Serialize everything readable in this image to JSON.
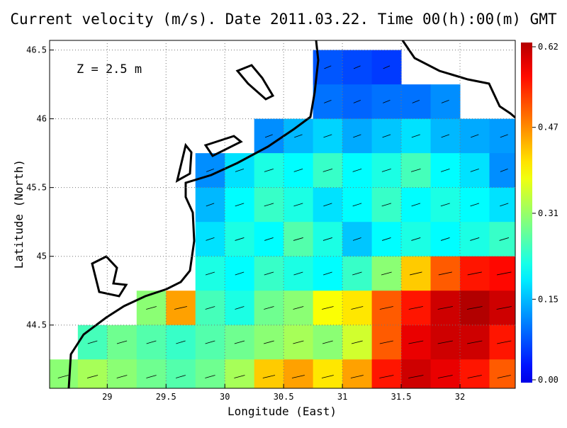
{
  "chart_data": {
    "type": "heatmap",
    "title": "Current velocity (m/s). Date 2011.03.22. Time 00(h):00(m) GMT",
    "x_label": "Longitude (East)",
    "y_label": "Latitude (North)",
    "annotation": "Z = 2.5 m",
    "xlim": [
      28.51,
      32.47
    ],
    "ylim": [
      44.04,
      46.57
    ],
    "xticks": [
      29,
      29.5,
      30,
      30.5,
      31,
      31.5,
      32
    ],
    "yticks": [
      44.5,
      45,
      45.5,
      46,
      46.5
    ],
    "x": [
      28.625,
      28.875,
      29.125,
      29.375,
      29.625,
      29.875,
      30.125,
      30.375,
      30.625,
      30.875,
      31.125,
      31.375,
      31.625,
      31.875,
      32.125,
      32.375
    ],
    "y": [
      46.375,
      46.125,
      45.875,
      45.625,
      45.375,
      45.125,
      44.875,
      44.625,
      44.375,
      44.125
    ],
    "values": [
      [
        null,
        null,
        null,
        null,
        null,
        null,
        null,
        null,
        null,
        0.08,
        0.07,
        0.06,
        null,
        null,
        null,
        null
      ],
      [
        null,
        null,
        null,
        null,
        null,
        null,
        null,
        null,
        null,
        0.1,
        0.09,
        0.1,
        0.1,
        0.12,
        null,
        null
      ],
      [
        null,
        null,
        null,
        null,
        null,
        null,
        null,
        0.12,
        0.15,
        0.17,
        0.14,
        0.16,
        0.18,
        0.15,
        0.14,
        0.13
      ],
      [
        null,
        null,
        null,
        null,
        null,
        0.12,
        0.18,
        0.22,
        0.2,
        0.24,
        0.2,
        0.22,
        0.25,
        0.2,
        0.18,
        0.12
      ],
      [
        null,
        null,
        null,
        null,
        null,
        0.15,
        0.2,
        0.24,
        0.22,
        0.18,
        0.2,
        0.24,
        0.2,
        0.22,
        0.2,
        0.18
      ],
      [
        null,
        null,
        null,
        null,
        null,
        0.18,
        0.22,
        0.2,
        0.26,
        0.22,
        0.16,
        0.2,
        0.22,
        0.2,
        0.22,
        0.24
      ],
      [
        null,
        null,
        null,
        null,
        null,
        0.22,
        0.2,
        0.24,
        0.22,
        0.2,
        0.24,
        0.3,
        0.42,
        0.5,
        0.55,
        0.56
      ],
      [
        null,
        null,
        null,
        0.3,
        0.45,
        0.25,
        0.22,
        0.28,
        0.3,
        0.38,
        0.4,
        0.5,
        0.55,
        0.6,
        0.62,
        0.6
      ],
      [
        null,
        0.25,
        0.28,
        0.26,
        0.24,
        0.26,
        0.28,
        0.3,
        0.32,
        0.3,
        0.35,
        0.5,
        0.58,
        0.6,
        0.6,
        0.55
      ],
      [
        0.3,
        0.32,
        0.3,
        0.28,
        0.26,
        0.28,
        0.32,
        0.42,
        0.45,
        0.4,
        0.45,
        0.55,
        0.6,
        0.58,
        0.55,
        0.5
      ]
    ],
    "colorbar": {
      "lim": [
        0,
        0.62
      ],
      "ticks": [
        {
          "value": 0,
          "label": "0.00"
        },
        0.15,
        0.31,
        0.47,
        0.62
      ]
    }
  }
}
